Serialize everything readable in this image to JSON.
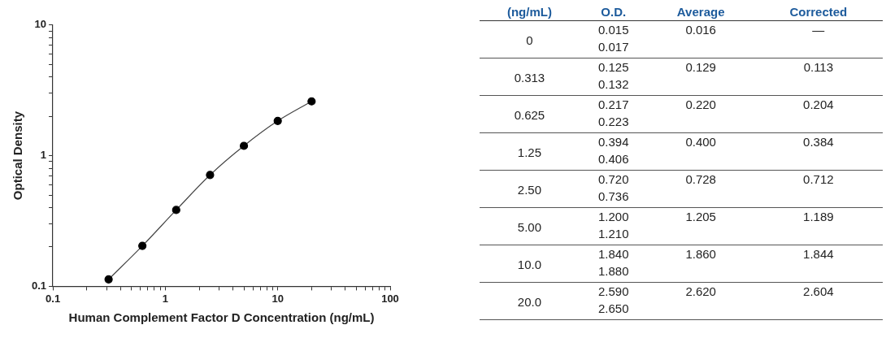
{
  "chart_data": [
    {
      "type": "line",
      "xlabel": "Human Complement Factor D Concentration (ng/mL)",
      "ylabel": "Optical Density",
      "log": "xy",
      "marker": "circle",
      "xlim": [
        0.1,
        100
      ],
      "ylim": [
        0.1,
        10
      ],
      "xticks": [
        0.1,
        {
          "value": 0.2,
          "label": null
        },
        {
          "value": 0.3,
          "label": null
        },
        {
          "value": 0.4,
          "label": null
        },
        {
          "value": 0.5,
          "label": null
        },
        {
          "value": 0.6,
          "label": null
        },
        {
          "value": 0.7,
          "label": null
        },
        {
          "value": 0.8,
          "label": null
        },
        {
          "value": 0.9,
          "label": null
        },
        1,
        {
          "value": 2,
          "label": null
        },
        {
          "value": 3,
          "label": null
        },
        {
          "value": 4,
          "label": null
        },
        {
          "value": 5,
          "label": null
        },
        {
          "value": 6,
          "label": null
        },
        {
          "value": 7,
          "label": null
        },
        {
          "value": 8,
          "label": null
        },
        {
          "value": 9,
          "label": null
        },
        10,
        {
          "value": 20,
          "label": null
        },
        {
          "value": 30,
          "label": null
        },
        {
          "value": 40,
          "label": null
        },
        {
          "value": 50,
          "label": null
        },
        {
          "value": 60,
          "label": null
        },
        {
          "value": 70,
          "label": null
        },
        {
          "value": 80,
          "label": null
        },
        {
          "value": 90,
          "label": null
        },
        100
      ],
      "yticks": [
        0.1,
        {
          "value": 0.2,
          "label": null
        },
        {
          "value": 0.3,
          "label": null
        },
        {
          "value": 0.4,
          "label": null
        },
        {
          "value": 0.5,
          "label": null
        },
        {
          "value": 0.6,
          "label": null
        },
        {
          "value": 0.7,
          "label": null
        },
        {
          "value": 0.8,
          "label": null
        },
        {
          "value": 0.9,
          "label": null
        },
        1,
        {
          "value": 2,
          "label": null
        },
        {
          "value": 3,
          "label": null
        },
        {
          "value": 4,
          "label": null
        },
        {
          "value": 5,
          "label": null
        },
        {
          "value": 6,
          "label": null
        },
        {
          "value": 7,
          "label": null
        },
        {
          "value": 8,
          "label": null
        },
        {
          "value": 9,
          "label": null
        },
        10
      ],
      "series": [
        {
          "color": "#000000",
          "x": [
            0.313,
            0.625,
            1.25,
            2.5,
            5,
            10,
            20
          ],
          "values": [
            0.113,
            0.204,
            0.384,
            0.712,
            1.189,
            1.844,
            2.604
          ]
        }
      ]
    },
    {
      "type": "other",
      "xlabel": "(ng/mL)",
      "categories": [
        "0",
        "0.313",
        "0.625",
        "1.25",
        "2.50",
        "5.00",
        "10.0",
        "20.0"
      ],
      "series": [
        {
          "name": "O.D.",
          "values": [
            0.015,
            0.125,
            0.217,
            0.394,
            0.72,
            1.2,
            1.84,
            2.59
          ],
          "value_labels": [
            "0.015",
            "0.125",
            "0.217",
            "0.394",
            "0.720",
            "1.200",
            "1.840",
            "2.590"
          ]
        },
        {
          "values": [
            0.017,
            0.132,
            0.223,
            0.406,
            0.736,
            1.21,
            1.88,
            2.65
          ],
          "value_labels": [
            "0.017",
            "0.132",
            "0.223",
            "0.406",
            "0.736",
            "1.210",
            "1.880",
            "2.650"
          ]
        },
        {
          "name": "Average",
          "values": [
            0.016,
            0.129,
            0.22,
            0.4,
            0.728,
            1.205,
            1.86,
            2.62
          ],
          "value_labels": [
            "0.016",
            "0.129",
            "0.220",
            "0.400",
            "0.728",
            "1.205",
            "1.860",
            "2.620"
          ]
        },
        {
          "name": "Corrected",
          "values": [
            null,
            0.113,
            0.204,
            0.384,
            0.712,
            1.189,
            1.844,
            2.604
          ],
          "value_labels": [
            "—",
            "0.113",
            "0.204",
            "0.384",
            "0.712",
            "1.189",
            "1.844",
            "2.604"
          ]
        }
      ]
    }
  ]
}
